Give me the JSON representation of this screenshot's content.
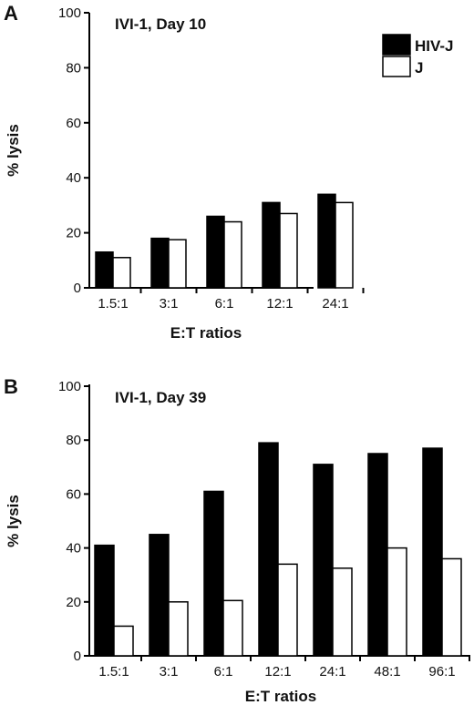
{
  "chart_data": [
    {
      "panel": "A",
      "type": "bar",
      "title": "IVI-1, Day 10",
      "xlabel": "E:T ratios",
      "ylabel": "% lysis",
      "ylim": [
        0,
        100
      ],
      "yticks": [
        0,
        20,
        40,
        60,
        80,
        100
      ],
      "categories": [
        "1.5:1",
        "3:1",
        "6:1",
        "12:1",
        "24:1"
      ],
      "series": [
        {
          "name": "HIV-J",
          "color": "#000000",
          "values": [
            13,
            18,
            26,
            31,
            34
          ]
        },
        {
          "name": "J",
          "color": "#ffffff",
          "values": [
            11,
            17.5,
            24,
            27,
            31
          ]
        }
      ],
      "legend": "top-right",
      "grid": false
    },
    {
      "panel": "B",
      "type": "bar",
      "title": "IVI-1, Day 39",
      "xlabel": "E:T ratios",
      "ylabel": "% lysis",
      "ylim": [
        0,
        100
      ],
      "yticks": [
        0,
        20,
        40,
        60,
        80,
        100
      ],
      "categories": [
        "1.5:1",
        "3:1",
        "6:1",
        "12:1",
        "24:1",
        "48:1",
        "96:1"
      ],
      "series": [
        {
          "name": "HIV-J",
          "color": "#000000",
          "values": [
            41,
            45,
            61,
            79,
            71,
            75,
            77
          ]
        },
        {
          "name": "J",
          "color": "#ffffff",
          "values": [
            11,
            20,
            20.5,
            34,
            32.5,
            40,
            36
          ]
        }
      ],
      "grid": false
    }
  ]
}
